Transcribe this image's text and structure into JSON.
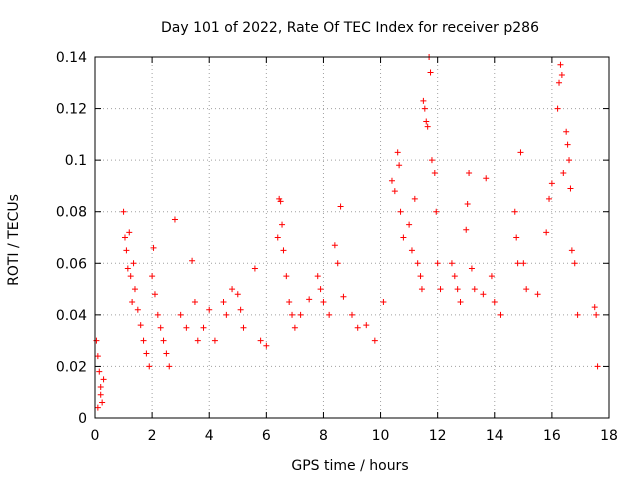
{
  "chart_data": {
    "type": "scatter",
    "title": "Day 101 of 2022, Rate Of TEC Index for receiver p286",
    "xlabel": "GPS time / hours",
    "ylabel": "ROTI / TECUs",
    "xlim": [
      0,
      18
    ],
    "ylim": [
      0,
      0.14
    ],
    "xticks": [
      0,
      2,
      4,
      6,
      8,
      10,
      12,
      14,
      16,
      18
    ],
    "xtick_labels": [
      "0",
      "2",
      "4",
      "6",
      "8",
      "10",
      "12",
      "14",
      "16",
      "18"
    ],
    "yticks": [
      0,
      0.02,
      0.04,
      0.06,
      0.08,
      0.1,
      0.12,
      0.14
    ],
    "ytick_labels": [
      "0",
      "0.02",
      "0.04",
      "0.06",
      "0.08",
      "0.1",
      "0.12",
      "0.14"
    ],
    "grid": true,
    "marker": "+",
    "series": [
      {
        "name": "ROTI",
        "color": "#ff0000",
        "points": [
          [
            0.05,
            0.03
          ],
          [
            0.1,
            0.024
          ],
          [
            0.15,
            0.018
          ],
          [
            0.2,
            0.012
          ],
          [
            0.25,
            0.006
          ],
          [
            0.1,
            0.004
          ],
          [
            0.2,
            0.009
          ],
          [
            0.3,
            0.015
          ],
          [
            1.0,
            0.08
          ],
          [
            1.05,
            0.07
          ],
          [
            1.1,
            0.065
          ],
          [
            1.15,
            0.058
          ],
          [
            1.2,
            0.072
          ],
          [
            1.25,
            0.055
          ],
          [
            1.3,
            0.045
          ],
          [
            1.35,
            0.06
          ],
          [
            1.4,
            0.05
          ],
          [
            1.5,
            0.042
          ],
          [
            1.6,
            0.036
          ],
          [
            1.7,
            0.03
          ],
          [
            1.8,
            0.025
          ],
          [
            1.9,
            0.02
          ],
          [
            2.0,
            0.055
          ],
          [
            2.05,
            0.066
          ],
          [
            2.1,
            0.048
          ],
          [
            2.2,
            0.04
          ],
          [
            2.3,
            0.035
          ],
          [
            2.4,
            0.03
          ],
          [
            2.5,
            0.025
          ],
          [
            2.6,
            0.02
          ],
          [
            2.8,
            0.077
          ],
          [
            3.0,
            0.04
          ],
          [
            3.2,
            0.035
          ],
          [
            3.4,
            0.061
          ],
          [
            3.5,
            0.045
          ],
          [
            3.6,
            0.03
          ],
          [
            3.8,
            0.035
          ],
          [
            4.0,
            0.042
          ],
          [
            4.2,
            0.03
          ],
          [
            4.5,
            0.045
          ],
          [
            4.6,
            0.04
          ],
          [
            4.8,
            0.05
          ],
          [
            5.0,
            0.048
          ],
          [
            5.1,
            0.042
          ],
          [
            5.2,
            0.035
          ],
          [
            5.6,
            0.058
          ],
          [
            5.8,
            0.03
          ],
          [
            6.0,
            0.028
          ],
          [
            6.4,
            0.07
          ],
          [
            6.45,
            0.085
          ],
          [
            6.5,
            0.084
          ],
          [
            6.55,
            0.075
          ],
          [
            6.6,
            0.065
          ],
          [
            6.7,
            0.055
          ],
          [
            6.8,
            0.045
          ],
          [
            6.9,
            0.04
          ],
          [
            7.0,
            0.035
          ],
          [
            7.2,
            0.04
          ],
          [
            7.5,
            0.046
          ],
          [
            7.8,
            0.055
          ],
          [
            7.9,
            0.05
          ],
          [
            8.0,
            0.045
          ],
          [
            8.2,
            0.04
          ],
          [
            8.4,
            0.067
          ],
          [
            8.5,
            0.06
          ],
          [
            8.6,
            0.082
          ],
          [
            8.7,
            0.047
          ],
          [
            9.0,
            0.04
          ],
          [
            9.2,
            0.035
          ],
          [
            9.5,
            0.036
          ],
          [
            9.8,
            0.03
          ],
          [
            10.1,
            0.045
          ],
          [
            10.4,
            0.092
          ],
          [
            10.5,
            0.088
          ],
          [
            10.6,
            0.103
          ],
          [
            10.65,
            0.098
          ],
          [
            10.7,
            0.08
          ],
          [
            10.8,
            0.07
          ],
          [
            11.0,
            0.075
          ],
          [
            11.1,
            0.065
          ],
          [
            11.2,
            0.085
          ],
          [
            11.3,
            0.06
          ],
          [
            11.4,
            0.055
          ],
          [
            11.45,
            0.05
          ],
          [
            11.5,
            0.123
          ],
          [
            11.55,
            0.12
          ],
          [
            11.6,
            0.115
          ],
          [
            11.65,
            0.113
          ],
          [
            11.7,
            0.14
          ],
          [
            11.75,
            0.134
          ],
          [
            11.8,
            0.1
          ],
          [
            11.9,
            0.095
          ],
          [
            11.95,
            0.08
          ],
          [
            12.0,
            0.06
          ],
          [
            12.1,
            0.05
          ],
          [
            12.5,
            0.06
          ],
          [
            12.6,
            0.055
          ],
          [
            12.7,
            0.05
          ],
          [
            12.8,
            0.045
          ],
          [
            13.0,
            0.073
          ],
          [
            13.05,
            0.083
          ],
          [
            13.1,
            0.095
          ],
          [
            13.2,
            0.058
          ],
          [
            13.3,
            0.05
          ],
          [
            13.6,
            0.048
          ],
          [
            13.7,
            0.093
          ],
          [
            13.9,
            0.055
          ],
          [
            14.0,
            0.045
          ],
          [
            14.2,
            0.04
          ],
          [
            14.7,
            0.08
          ],
          [
            14.75,
            0.07
          ],
          [
            14.8,
            0.06
          ],
          [
            14.9,
            0.103
          ],
          [
            15.0,
            0.06
          ],
          [
            15.1,
            0.05
          ],
          [
            15.5,
            0.048
          ],
          [
            15.8,
            0.072
          ],
          [
            15.9,
            0.085
          ],
          [
            16.0,
            0.091
          ],
          [
            16.2,
            0.12
          ],
          [
            16.25,
            0.13
          ],
          [
            16.3,
            0.137
          ],
          [
            16.35,
            0.133
          ],
          [
            16.4,
            0.095
          ],
          [
            16.5,
            0.111
          ],
          [
            16.55,
            0.106
          ],
          [
            16.6,
            0.1
          ],
          [
            16.65,
            0.089
          ],
          [
            16.7,
            0.065
          ],
          [
            16.8,
            0.06
          ],
          [
            16.9,
            0.04
          ],
          [
            17.5,
            0.043
          ],
          [
            17.55,
            0.04
          ],
          [
            17.6,
            0.02
          ]
        ]
      }
    ]
  }
}
